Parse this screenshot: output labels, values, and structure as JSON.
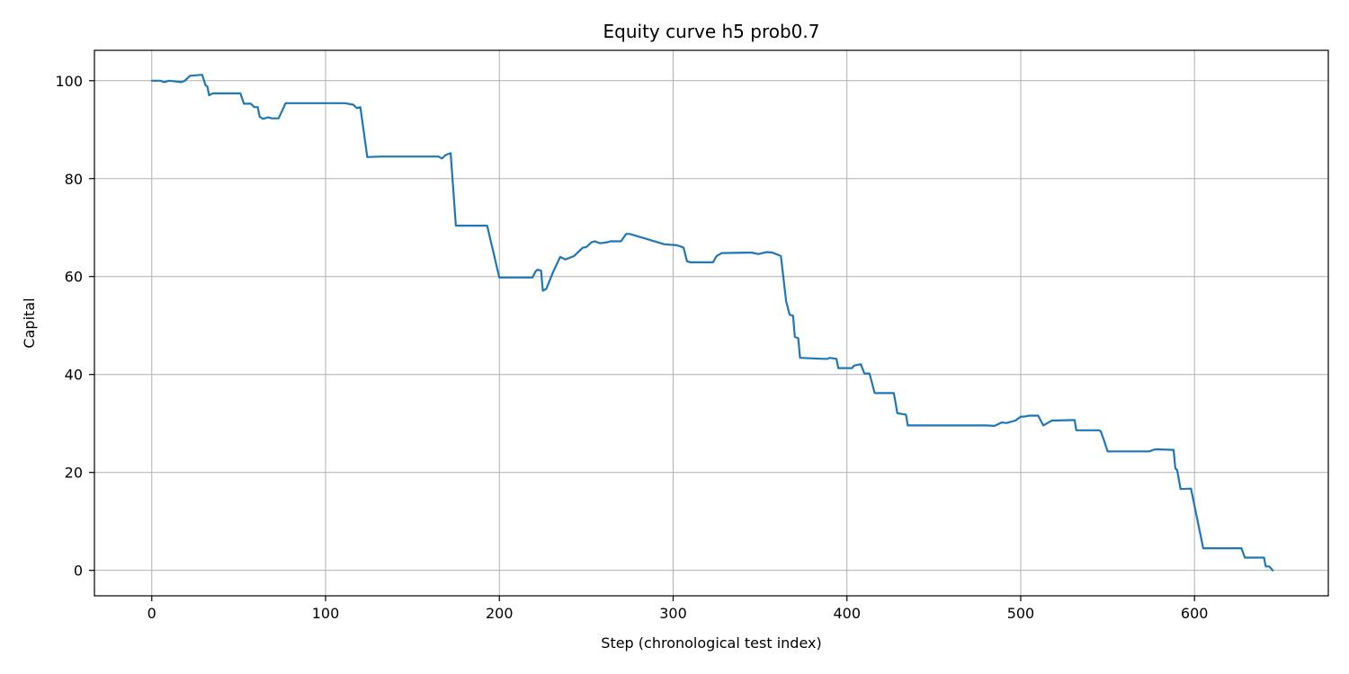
{
  "chart_data": {
    "type": "line",
    "title": "Equity curve h5 prob0.7",
    "xlabel": "Step (chronological test index)",
    "ylabel": "Capital",
    "xlim": [
      -33,
      677
    ],
    "ylim": [
      -5.2,
      106.2
    ],
    "xticks": [
      0,
      100,
      200,
      300,
      400,
      500,
      600
    ],
    "yticks": [
      0,
      20,
      40,
      60,
      80,
      100
    ],
    "grid": true,
    "line_color": "#1f77b4",
    "series": [
      {
        "x": [
          0,
          5,
          7,
          10,
          17,
          19,
          22,
          29,
          31,
          32,
          33,
          35,
          51,
          53,
          57,
          59,
          61,
          62,
          64,
          67,
          69,
          73,
          77,
          111,
          116,
          118,
          120,
          124,
          132,
          165,
          167,
          169,
          172,
          175,
          193,
          200,
          219,
          221,
          222,
          224,
          225,
          227,
          231,
          235,
          238,
          243,
          248,
          250,
          253,
          255,
          258,
          262,
          264,
          270,
          273,
          275,
          295,
          302,
          304,
          306,
          308,
          310,
          323,
          325,
          328,
          345,
          349,
          354,
          357,
          362,
          365,
          367,
          369,
          370,
          372,
          373,
          386,
          389,
          390,
          394,
          395,
          403,
          404,
          405,
          408,
          410,
          413,
          416,
          427,
          429,
          434,
          435,
          480,
          485,
          489,
          492,
          495,
          497,
          500,
          502,
          505,
          510,
          513,
          516,
          518,
          521,
          531,
          532,
          545,
          546,
          548,
          550,
          574,
          577,
          580,
          588,
          589,
          590,
          592,
          598,
          605,
          609,
          627,
          629,
          640,
          641,
          643,
          645
        ],
        "y": [
          100,
          100,
          99.7,
          100,
          99.7,
          100,
          101,
          101.2,
          99,
          98.8,
          97,
          97.4,
          97.4,
          95.3,
          95.3,
          94.6,
          94.6,
          92.7,
          92.2,
          92.5,
          92.3,
          92.3,
          95.4,
          95.4,
          95.1,
          94.4,
          94.6,
          84.4,
          84.5,
          84.5,
          84.1,
          84.8,
          85.2,
          70.4,
          70.4,
          59.8,
          59.8,
          61.1,
          61.4,
          61.2,
          57.1,
          57.5,
          61,
          64,
          63.5,
          64.2,
          65.9,
          66,
          67,
          67.2,
          66.8,
          67,
          67.2,
          67.2,
          68.7,
          68.7,
          66.6,
          66.4,
          66.2,
          65.9,
          63.1,
          62.9,
          62.9,
          64.2,
          64.8,
          64.9,
          64.6,
          65,
          64.9,
          64.2,
          55,
          52.2,
          52,
          47.7,
          47.4,
          43.4,
          43.2,
          43.2,
          43.4,
          43.2,
          41.3,
          41.3,
          41.8,
          41.9,
          42.1,
          40.2,
          40.2,
          36.2,
          36.2,
          32.1,
          31.8,
          29.6,
          29.6,
          29.5,
          30.2,
          30.1,
          30.4,
          30.6,
          31.4,
          31.4,
          31.6,
          31.6,
          29.6,
          30.2,
          30.6,
          30.6,
          30.7,
          28.6,
          28.6,
          28.4,
          26.5,
          24.3,
          24.3,
          24.7,
          24.7,
          24.6,
          20.8,
          20.5,
          16.6,
          16.7,
          4.5,
          4.5,
          4.5,
          2.6,
          2.6,
          0.8,
          0.8,
          0
        ]
      }
    ]
  }
}
